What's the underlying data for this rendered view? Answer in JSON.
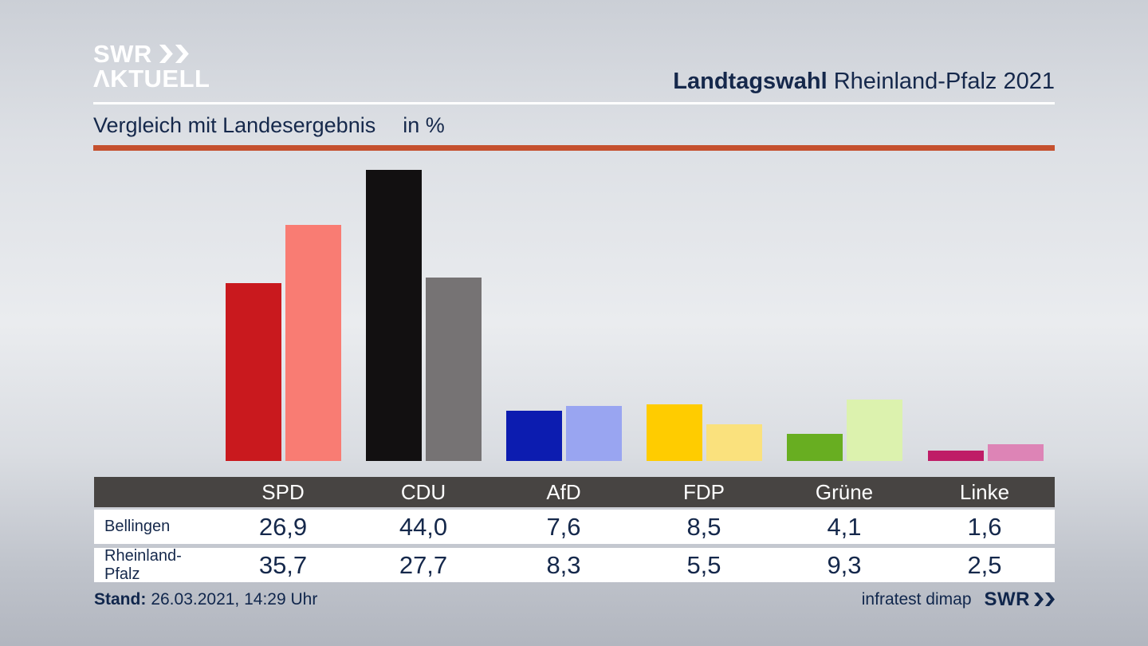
{
  "header": {
    "logo_line1": "SWR",
    "logo_line2": "ΛKTUELL",
    "title_bold": "Landtagswahl",
    "title_rest": " Rheinland-Pfalz 2021"
  },
  "subtitle": {
    "text": "Vergleich mit Landesergebnis",
    "unit": "in %"
  },
  "accent_color": "#c5502e",
  "chart_data": {
    "type": "bar",
    "title": "Vergleich mit Landesergebnis in %",
    "categories": [
      "SPD",
      "CDU",
      "AfD",
      "FDP",
      "Grüne",
      "Linke"
    ],
    "series": [
      {
        "name": "Bellingen",
        "values": [
          26.9,
          44.0,
          7.6,
          8.5,
          4.1,
          1.6
        ]
      },
      {
        "name": "Rheinland-Pfalz",
        "values": [
          35.7,
          27.7,
          8.3,
          5.5,
          9.3,
          2.5
        ]
      }
    ],
    "unit": "%",
    "ylim": [
      0,
      45
    ],
    "grid": false,
    "legend": "table-below",
    "bar_colors": [
      {
        "party": "SPD",
        "primary": "#c9191e",
        "secondary": "#f97c73"
      },
      {
        "party": "CDU",
        "primary": "#121011",
        "secondary": "#767374"
      },
      {
        "party": "AfD",
        "primary": "#0c1cb0",
        "secondary": "#99a5f1"
      },
      {
        "party": "FDP",
        "primary": "#ffcc00",
        "secondary": "#fae17d"
      },
      {
        "party": "Grüne",
        "primary": "#68ae21",
        "secondary": "#dcf2ae"
      },
      {
        "party": "Linke",
        "primary": "#bf1d67",
        "secondary": "#dd84b6"
      }
    ]
  },
  "table": {
    "columns": [
      "SPD",
      "CDU",
      "AfD",
      "FDP",
      "Grüne",
      "Linke"
    ],
    "rows": [
      {
        "label": "Bellingen",
        "values": [
          "26,9",
          "44,0",
          "7,6",
          "8,5",
          "4,1",
          "1,6"
        ]
      },
      {
        "label": "Rheinland-Pfalz",
        "values": [
          "35,7",
          "27,7",
          "8,3",
          "5,5",
          "9,3",
          "2,5"
        ]
      }
    ]
  },
  "footer": {
    "stand_label": "Stand:",
    "stand_value": "26.03.2021, 14:29 Uhr",
    "source": "infratest dimap",
    "network": "SWR"
  }
}
